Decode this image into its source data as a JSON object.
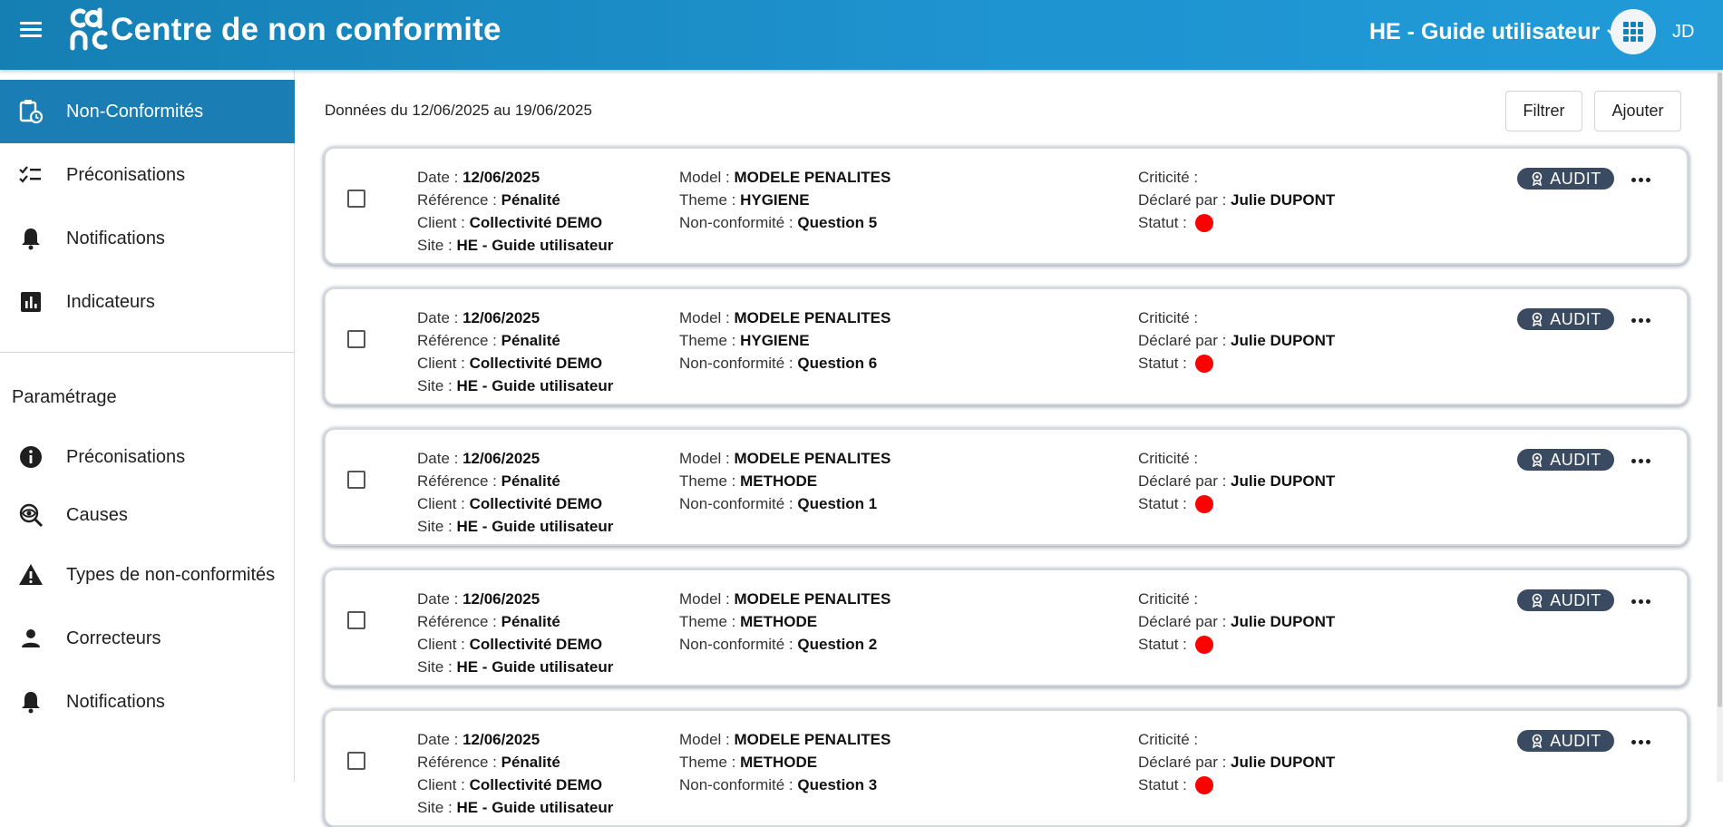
{
  "header": {
    "app_title": "Centre de non conformite",
    "logo_text": "cdnc",
    "site_selector": "HE - Guide utilisateur",
    "user_initials": "JD",
    "brand_color": "#1e93cf"
  },
  "sidebar": {
    "items": [
      {
        "label": "Non-Conformités",
        "icon": "clipboard-clock-icon",
        "active": true
      },
      {
        "label": "Préconisations",
        "icon": "checklist-icon"
      },
      {
        "label": "Notifications",
        "icon": "bell-icon"
      },
      {
        "label": "Indicateurs",
        "icon": "bar-chart-icon"
      }
    ],
    "section_title": "Paramétrage",
    "settings_items": [
      {
        "label": "Préconisations",
        "icon": "info-icon"
      },
      {
        "label": "Causes",
        "icon": "eye-target-icon"
      },
      {
        "label": "Types de non-conformités",
        "icon": "warning-icon"
      },
      {
        "label": "Correcteurs",
        "icon": "person-icon"
      },
      {
        "label": "Notifications",
        "icon": "bell-icon"
      }
    ]
  },
  "main": {
    "period": "Données du 12/06/2025 au 19/06/2025",
    "filter_label": "Filtrer",
    "add_label": "Ajouter"
  },
  "labels": {
    "date": "Date : ",
    "reference": "Référence : ",
    "client": "Client : ",
    "site": "Site : ",
    "model": "Model : ",
    "theme": "Theme : ",
    "nonconformity": "Non-conformité : ",
    "criticity": "Criticité : ",
    "declared_by": "Déclaré par : ",
    "status": "Statut : "
  },
  "cards": [
    {
      "date": "12/06/2025",
      "reference": "Pénalité",
      "client": "Collectivité DEMO",
      "site": "HE - Guide utilisateur",
      "model": "MODELE PENALITES",
      "theme": "HYGIENE",
      "nonconformity": "Question 5",
      "criticity": "",
      "declared_by": "Julie DUPONT",
      "status_color": "#ff0000",
      "badge": "AUDIT"
    },
    {
      "date": "12/06/2025",
      "reference": "Pénalité",
      "client": "Collectivité DEMO",
      "site": "HE - Guide utilisateur",
      "model": "MODELE PENALITES",
      "theme": "HYGIENE",
      "nonconformity": "Question 6",
      "criticity": "",
      "declared_by": "Julie DUPONT",
      "status_color": "#ff0000",
      "badge": "AUDIT"
    },
    {
      "date": "12/06/2025",
      "reference": "Pénalité",
      "client": "Collectivité DEMO",
      "site": "HE - Guide utilisateur",
      "model": "MODELE PENALITES",
      "theme": "METHODE",
      "nonconformity": "Question 1",
      "criticity": "",
      "declared_by": "Julie DUPONT",
      "status_color": "#ff0000",
      "badge": "AUDIT"
    },
    {
      "date": "12/06/2025",
      "reference": "Pénalité",
      "client": "Collectivité DEMO",
      "site": "HE - Guide utilisateur",
      "model": "MODELE PENALITES",
      "theme": "METHODE",
      "nonconformity": "Question 2",
      "criticity": "",
      "declared_by": "Julie DUPONT",
      "status_color": "#ff0000",
      "badge": "AUDIT"
    },
    {
      "date": "12/06/2025",
      "reference": "Pénalité",
      "client": "Collectivité DEMO",
      "site": "HE - Guide utilisateur",
      "model": "MODELE PENALITES",
      "theme": "METHODE",
      "nonconformity": "Question 3",
      "criticity": "",
      "declared_by": "Julie DUPONT",
      "status_color": "#ff0000",
      "badge": "AUDIT"
    }
  ]
}
